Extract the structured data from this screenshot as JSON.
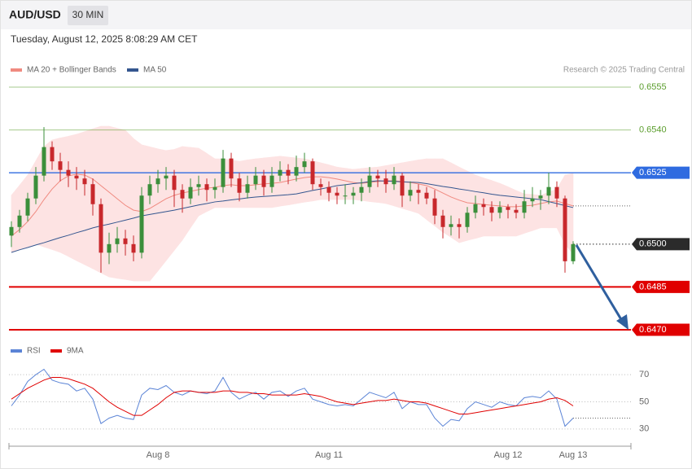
{
  "header": {
    "symbol": "AUD/USD",
    "interval": "30 MIN",
    "timestamp": "Tuesday, August 12, 2025 8:08:29 AM CET",
    "credit": "Research © 2025 Trading Central"
  },
  "chart_data": [
    {
      "type": "candlestick",
      "up_color": "#3b8f3b",
      "down_color": "#c8282c",
      "ylim": [
        0.6466,
        0.6559
      ],
      "open": [
        0.6503,
        0.6506,
        0.651,
        0.6516,
        0.6524,
        0.6534,
        0.6529,
        0.6526,
        0.6524,
        0.6523,
        0.6521,
        0.6514,
        0.6497,
        0.65,
        0.6502,
        0.65,
        0.6497,
        0.6517,
        0.6521,
        0.6523,
        0.6524,
        0.6519,
        0.6516,
        0.652,
        0.6521,
        0.6519,
        0.652,
        0.653,
        0.6523,
        0.6518,
        0.6521,
        0.6524,
        0.652,
        0.6524,
        0.6526,
        0.6524,
        0.6527,
        0.6529,
        0.6521,
        0.652,
        0.6518,
        0.6517,
        0.6517,
        0.6518,
        0.652,
        0.6524,
        0.6523,
        0.6521,
        0.6524,
        0.6517,
        0.6519,
        0.6518,
        0.6516,
        0.651,
        0.6506,
        0.6507,
        0.6506,
        0.6511,
        0.6514,
        0.6513,
        0.6511,
        0.6513,
        0.6512,
        0.6511,
        0.6515,
        0.6516,
        0.6517,
        0.652,
        0.6516,
        0.6494
      ],
      "high": [
        0.6508,
        0.6512,
        0.6518,
        0.6527,
        0.6541,
        0.6536,
        0.6532,
        0.6529,
        0.6527,
        0.6526,
        0.6523,
        0.6516,
        0.6504,
        0.6506,
        0.6505,
        0.6503,
        0.652,
        0.6524,
        0.6526,
        0.6527,
        0.6526,
        0.6521,
        0.6523,
        0.6524,
        0.6523,
        0.6523,
        0.6533,
        0.6532,
        0.6525,
        0.6524,
        0.6527,
        0.6526,
        0.6527,
        0.6529,
        0.6528,
        0.6531,
        0.6532,
        0.653,
        0.6523,
        0.6522,
        0.652,
        0.6521,
        0.652,
        0.6523,
        0.6527,
        0.6526,
        0.6526,
        0.6527,
        0.6525,
        0.6522,
        0.6521,
        0.652,
        0.6519,
        0.6512,
        0.651,
        0.6509,
        0.6513,
        0.6517,
        0.6516,
        0.6515,
        0.6515,
        0.6514,
        0.6514,
        0.6519,
        0.652,
        0.6519,
        0.6525,
        0.6522,
        0.6517,
        0.6501
      ],
      "low": [
        0.6499,
        0.6504,
        0.6508,
        0.6514,
        0.6522,
        0.6526,
        0.6522,
        0.652,
        0.6519,
        0.6517,
        0.651,
        0.649,
        0.6493,
        0.6497,
        0.6496,
        0.6494,
        0.6495,
        0.6514,
        0.6518,
        0.6519,
        0.6513,
        0.6511,
        0.6514,
        0.6517,
        0.6515,
        0.6516,
        0.6518,
        0.652,
        0.6515,
        0.6516,
        0.6519,
        0.6517,
        0.6518,
        0.6522,
        0.6521,
        0.6522,
        0.6525,
        0.6519,
        0.6517,
        0.6515,
        0.6514,
        0.6514,
        0.6514,
        0.6515,
        0.6518,
        0.652,
        0.6518,
        0.6519,
        0.6513,
        0.6515,
        0.6514,
        0.6514,
        0.6507,
        0.6502,
        0.6503,
        0.6502,
        0.6504,
        0.6509,
        0.651,
        0.6508,
        0.6509,
        0.6509,
        0.6509,
        0.6509,
        0.6513,
        0.6512,
        0.6514,
        0.6513,
        0.649,
        0.6493
      ],
      "close": [
        0.6506,
        0.651,
        0.6516,
        0.6524,
        0.6534,
        0.6529,
        0.6526,
        0.6524,
        0.6523,
        0.6521,
        0.6514,
        0.6497,
        0.65,
        0.6502,
        0.65,
        0.6497,
        0.6517,
        0.6521,
        0.6523,
        0.6524,
        0.6519,
        0.6516,
        0.652,
        0.6521,
        0.6519,
        0.652,
        0.653,
        0.6523,
        0.6518,
        0.6521,
        0.6524,
        0.652,
        0.6524,
        0.6526,
        0.6524,
        0.6527,
        0.6529,
        0.6521,
        0.652,
        0.6518,
        0.6517,
        0.6517,
        0.6518,
        0.652,
        0.6524,
        0.6523,
        0.6521,
        0.6524,
        0.6517,
        0.6519,
        0.6518,
        0.6516,
        0.651,
        0.6506,
        0.6507,
        0.6506,
        0.6511,
        0.6514,
        0.6513,
        0.6511,
        0.6513,
        0.6512,
        0.6511,
        0.6515,
        0.6516,
        0.6517,
        0.652,
        0.6516,
        0.6494,
        0.65
      ],
      "series": [
        {
          "name": "MA 20 + Bollinger Bands",
          "color": "#f08a80",
          "band_color": "#fde3e3",
          "values": [
            0.65028,
            0.65051,
            0.65079,
            0.65114,
            0.65156,
            0.65193,
            0.65222,
            0.65239,
            0.65245,
            0.65242,
            0.65228,
            0.65205,
            0.65182,
            0.65159,
            0.65136,
            0.65119,
            0.65114,
            0.65125,
            0.65142,
            0.65159,
            0.65171,
            0.65179,
            0.65185,
            0.65191,
            0.65196,
            0.65199,
            0.65205,
            0.65208,
            0.65205,
            0.65205,
            0.65208,
            0.65211,
            0.65213,
            0.65216,
            0.65222,
            0.65228,
            0.65233,
            0.65236,
            0.65236,
            0.65233,
            0.65228,
            0.65222,
            0.65216,
            0.65213,
            0.65216,
            0.65219,
            0.65222,
            0.65222,
            0.65219,
            0.65216,
            0.65211,
            0.65205,
            0.65193,
            0.65179,
            0.65165,
            0.65154,
            0.65145,
            0.65142,
            0.65139,
            0.65136,
            0.65134,
            0.65131,
            0.65131,
            0.65134,
            0.65136,
            0.65142,
            0.65148,
            0.65151,
            0.65142,
            0.65134
          ],
          "upper": [
            0.65171,
            0.65206,
            0.65242,
            0.65292,
            0.65342,
            0.65365,
            0.65372,
            0.65378,
            0.65385,
            0.65394,
            0.65404,
            0.65413,
            0.65413,
            0.65406,
            0.65399,
            0.6537,
            0.65348,
            0.65341,
            0.65334,
            0.65328,
            0.65332,
            0.65342,
            0.65339,
            0.65336,
            0.65318,
            0.65299,
            0.65299,
            0.65295,
            0.6529,
            0.65295,
            0.65299,
            0.65302,
            0.65305,
            0.65308,
            0.65305,
            0.65302,
            0.65299,
            0.65292,
            0.65285,
            0.65278,
            0.6527,
            0.65266,
            0.65262,
            0.65265,
            0.65268,
            0.6527,
            0.65275,
            0.6528,
            0.65285,
            0.6529,
            0.65295,
            0.65299,
            0.65299,
            0.65299,
            0.65285,
            0.6527,
            0.65256,
            0.65242,
            0.65232,
            0.65223,
            0.65213,
            0.65201,
            0.65188,
            0.65176,
            0.65174,
            0.65171,
            0.65182,
            0.65193,
            0.65242,
            0.65248
          ],
          "lower": [
            0.64971,
            0.64981,
            0.6499,
            0.65,
            0.6499,
            0.64981,
            0.64971,
            0.64957,
            0.64942,
            0.64928,
            0.64914,
            0.64899,
            0.64885,
            0.6488,
            0.64876,
            0.64871,
            0.64871,
            0.64871,
            0.64906,
            0.64942,
            0.64978,
            0.65014,
            0.65057,
            0.65099,
            0.65114,
            0.65128,
            0.65128,
            0.65128,
            0.65128,
            0.65128,
            0.65128,
            0.65128,
            0.65128,
            0.65133,
            0.65137,
            0.65142,
            0.65147,
            0.65151,
            0.65156,
            0.65156,
            0.65156,
            0.65156,
            0.65156,
            0.65153,
            0.65149,
            0.65146,
            0.65142,
            0.65134,
            0.65125,
            0.65117,
            0.65108,
            0.65086,
            0.65064,
            0.65042,
            0.65024,
            0.65005,
            0.65013,
            0.6502,
            0.65028,
            0.65028,
            0.65028,
            0.65028,
            0.65028,
            0.65038,
            0.65047,
            0.65057,
            0.65057,
            0.65057,
            0.65,
            0.64965
          ]
        },
        {
          "name": "MA 50",
          "color": "#34568f",
          "values": [
            0.64971,
            0.6498,
            0.64988,
            0.64997,
            0.65005,
            0.65014,
            0.65023,
            0.65031,
            0.6504,
            0.65048,
            0.65057,
            0.65064,
            0.6507,
            0.65077,
            0.65084,
            0.65091,
            0.65099,
            0.65104,
            0.65109,
            0.65114,
            0.65119,
            0.65125,
            0.65131,
            0.65137,
            0.65142,
            0.65148,
            0.65151,
            0.65155,
            0.65158,
            0.65162,
            0.65165,
            0.65167,
            0.65169,
            0.65171,
            0.65173,
            0.65176,
            0.65182,
            0.65188,
            0.65193,
            0.65199,
            0.65205,
            0.65208,
            0.65212,
            0.65215,
            0.65219,
            0.65222,
            0.65221,
            0.6522,
            0.65218,
            0.65217,
            0.65216,
            0.65212,
            0.65207,
            0.65202,
            0.65198,
            0.65193,
            0.65189,
            0.65184,
            0.6518,
            0.65175,
            0.65171,
            0.65168,
            0.65165,
            0.65162,
            0.65159,
            0.65156,
            0.65149,
            0.65142,
            0.65135,
            0.65128
          ]
        }
      ],
      "levels": [
        {
          "value": 0.6555,
          "label": "0.6555",
          "color": "#5c9e2e",
          "style": "plain"
        },
        {
          "value": 0.654,
          "label": "0.6540",
          "color": "#5c9e2e",
          "style": "plain"
        },
        {
          "value": 0.6525,
          "label": "0.6525",
          "color": "#2f6be0",
          "style": "box"
        },
        {
          "value": 0.65,
          "label": "0.6500",
          "color": "#2b2b2b",
          "style": "dotted"
        },
        {
          "value": 0.6485,
          "label": "0.6485",
          "color": "#e00000",
          "style": "box"
        },
        {
          "value": 0.647,
          "label": "0.6470",
          "color": "#e00000",
          "style": "box"
        }
      ]
    },
    {
      "type": "line",
      "ylim": [
        20,
        80
      ],
      "yticks": [
        30,
        50,
        70
      ],
      "grid": true,
      "categories": [
        null,
        null,
        null,
        null,
        null,
        null,
        null,
        null,
        null,
        null,
        null,
        null,
        null,
        null,
        null,
        null,
        null,
        null,
        "Aug 8",
        null,
        null,
        null,
        null,
        null,
        null,
        null,
        null,
        null,
        null,
        null,
        null,
        null,
        null,
        null,
        null,
        null,
        null,
        null,
        null,
        "Aug 11",
        null,
        null,
        null,
        null,
        null,
        null,
        null,
        null,
        null,
        null,
        null,
        null,
        null,
        null,
        null,
        null,
        null,
        null,
        null,
        null,
        null,
        "Aug 12",
        null,
        null,
        null,
        null,
        null,
        null,
        null,
        "Aug 13"
      ],
      "series": [
        {
          "name": "RSI",
          "color": "#5b84d6",
          "values": [
            47,
            55,
            65,
            70,
            74,
            66,
            64,
            63,
            58,
            60,
            52,
            34,
            38,
            40,
            38,
            37,
            55,
            60,
            59,
            62,
            57,
            55,
            58,
            57,
            56,
            58,
            68,
            57,
            52,
            55,
            57,
            52,
            57,
            58,
            54,
            58,
            60,
            52,
            50,
            48,
            47,
            48,
            47,
            52,
            57,
            55,
            53,
            57,
            45,
            50,
            48,
            48,
            38,
            32,
            37,
            36,
            45,
            50,
            48,
            46,
            50,
            48,
            47,
            53,
            54,
            53,
            58,
            52,
            32,
            38
          ]
        },
        {
          "name": "9MA",
          "color": "#e00000",
          "values": [
            52,
            56,
            60,
            63,
            66,
            68,
            68,
            67,
            65,
            63,
            60,
            55,
            50,
            46,
            43,
            40,
            40,
            44,
            48,
            53,
            57,
            58,
            58,
            57,
            57,
            57,
            58,
            58,
            57,
            57,
            56,
            56,
            55,
            55,
            55,
            55,
            56,
            55,
            54,
            52,
            50,
            49,
            48,
            49,
            50,
            51,
            51,
            52,
            51,
            50,
            50,
            49,
            47,
            45,
            43,
            41,
            41,
            42,
            43,
            44,
            45,
            46,
            47,
            48,
            49,
            50,
            52,
            53,
            51,
            47
          ]
        }
      ]
    }
  ]
}
